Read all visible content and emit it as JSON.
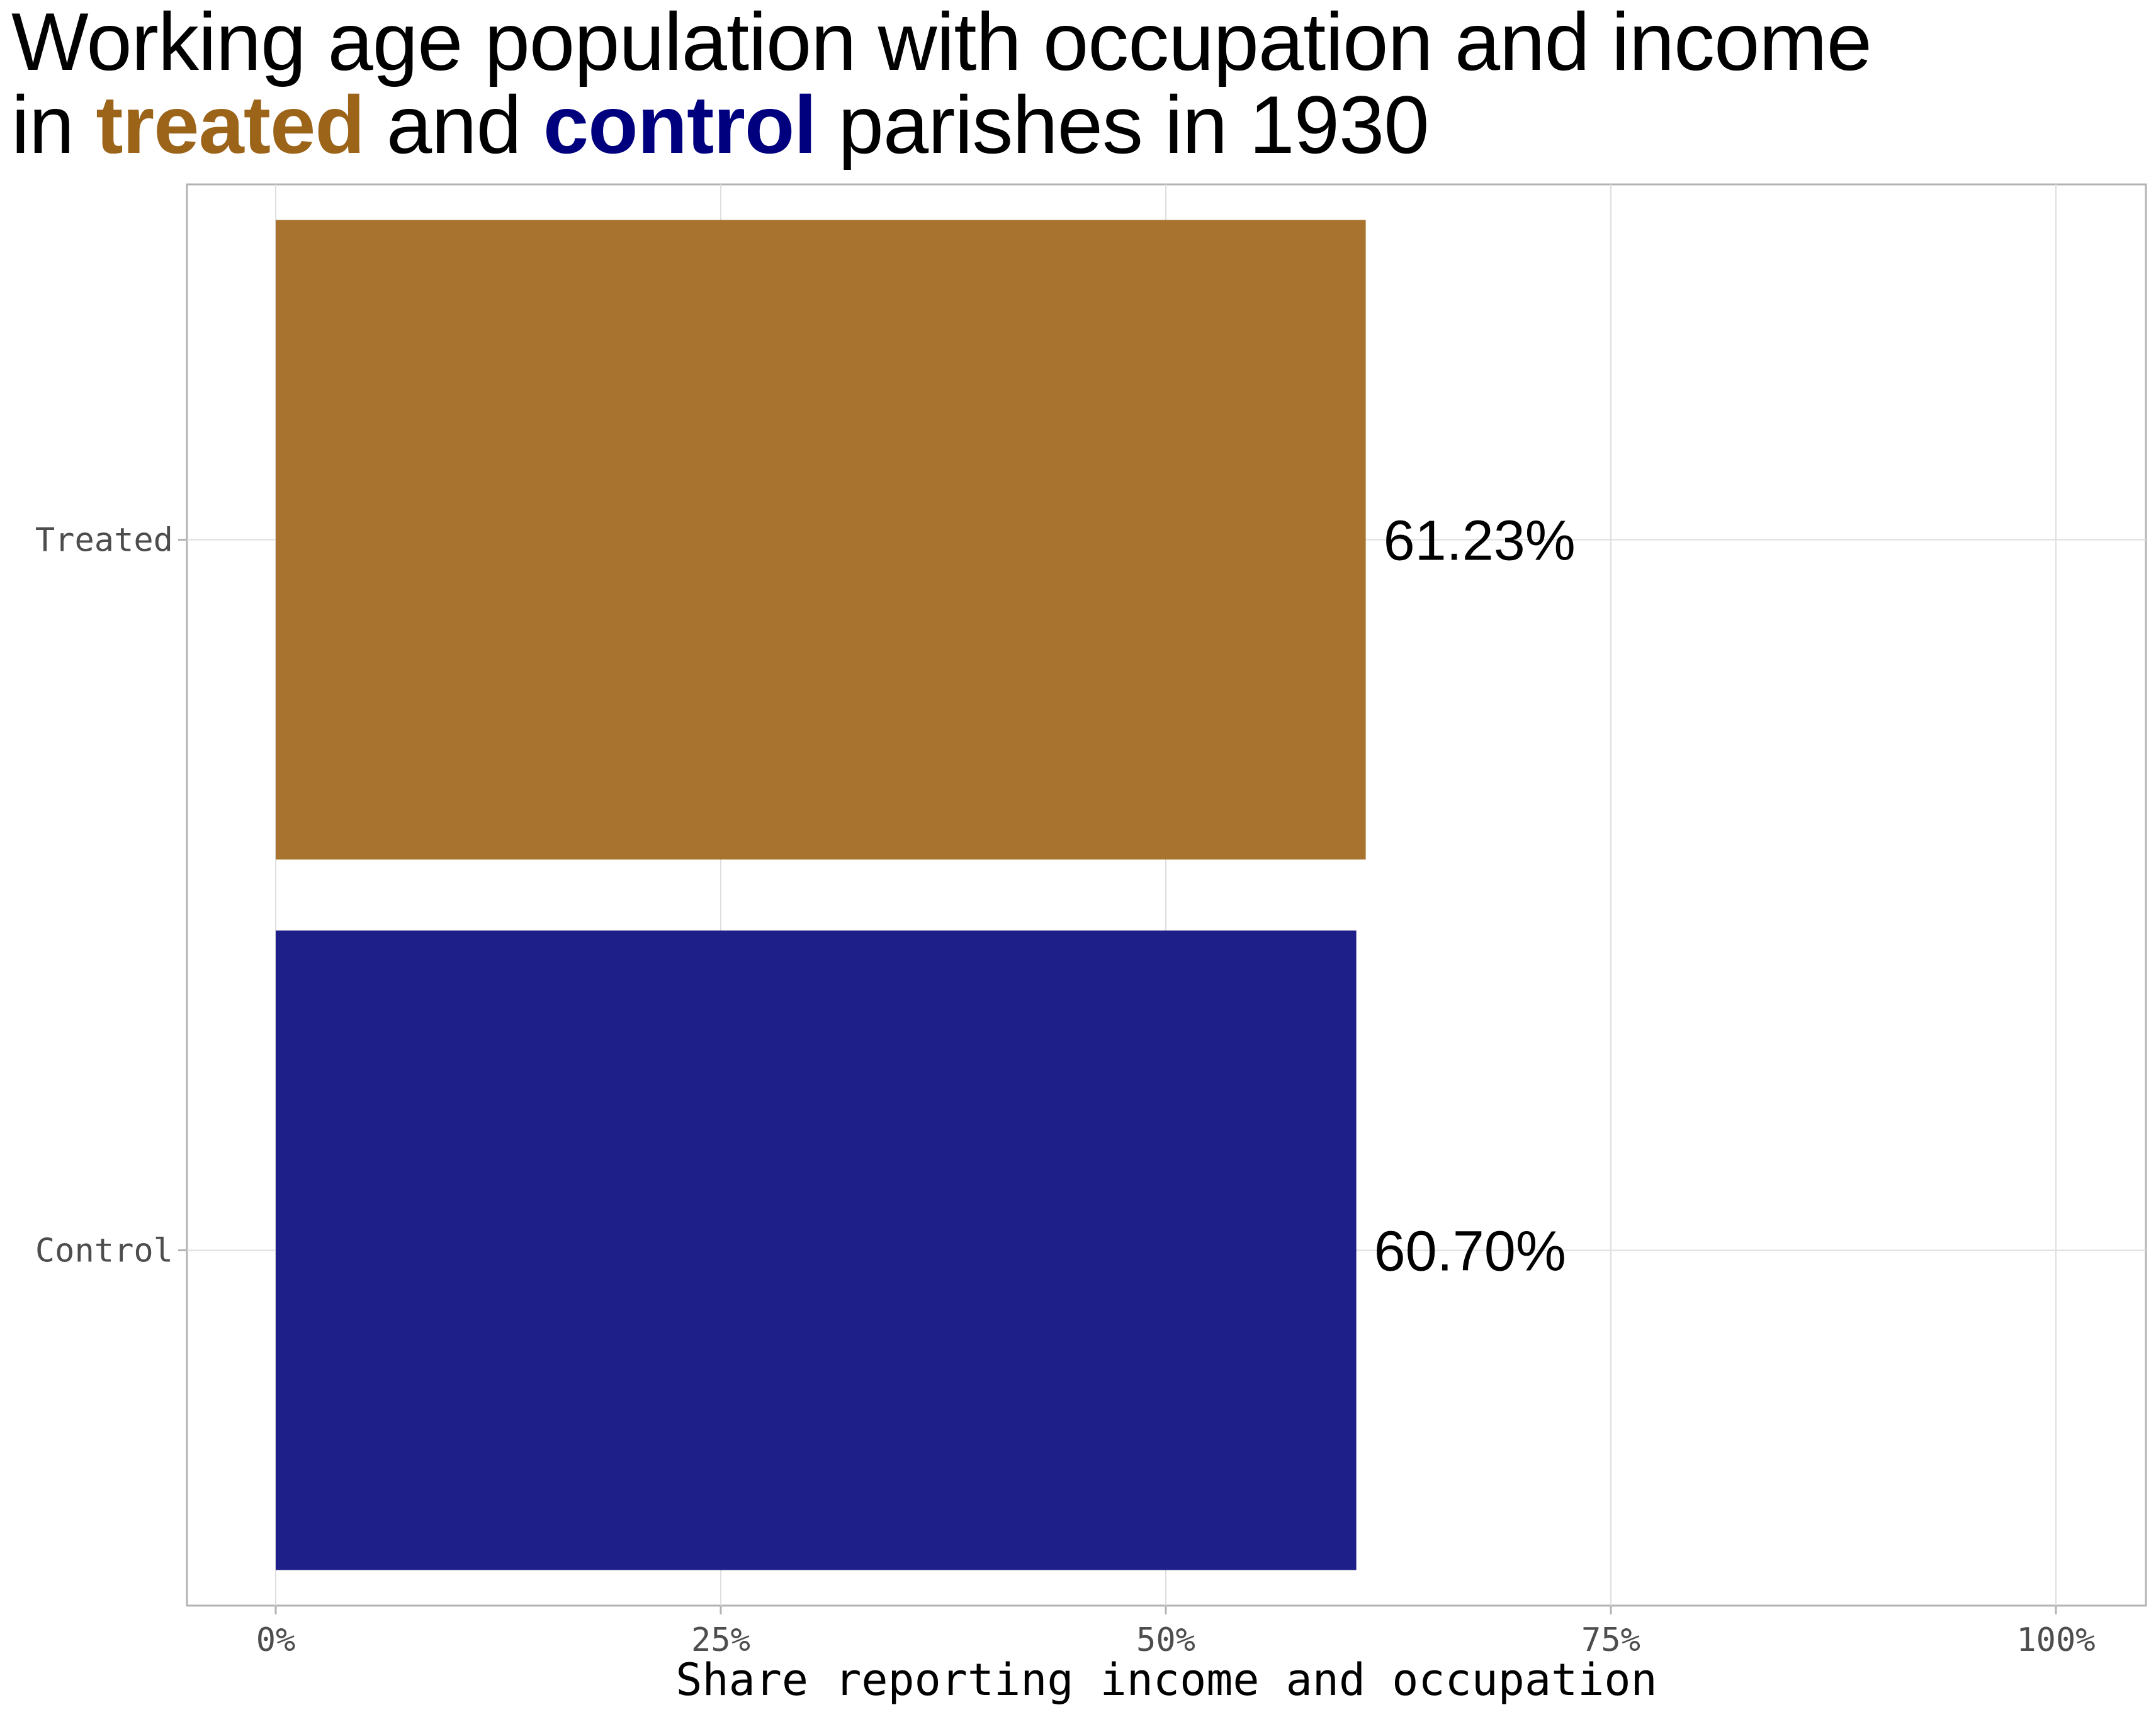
{
  "title": {
    "line1": "Working age population with occupation and income",
    "line2_prefix": "in ",
    "line2_treated": "treated",
    "line2_mid": " and ",
    "line2_control": "control",
    "line2_suffix": " parishes in 1930"
  },
  "chart_data": {
    "type": "bar",
    "orientation": "horizontal",
    "categories": [
      "Treated",
      "Control"
    ],
    "values": [
      61.23,
      60.7
    ],
    "data_labels": [
      "61.23%",
      "60.70%"
    ],
    "colors": [
      "#a8732f",
      "#1f1f8a"
    ],
    "xlabel": "Share reporting income and occupation",
    "xlim": [
      0,
      100
    ],
    "xticks": [
      0,
      25,
      50,
      75,
      100
    ],
    "xtick_labels": [
      "0%",
      "25%",
      "50%",
      "75%",
      "100%"
    ],
    "grid": true,
    "legend": "none"
  },
  "colors": {
    "treated_title": "#9b6419",
    "control_title": "#00007f"
  }
}
